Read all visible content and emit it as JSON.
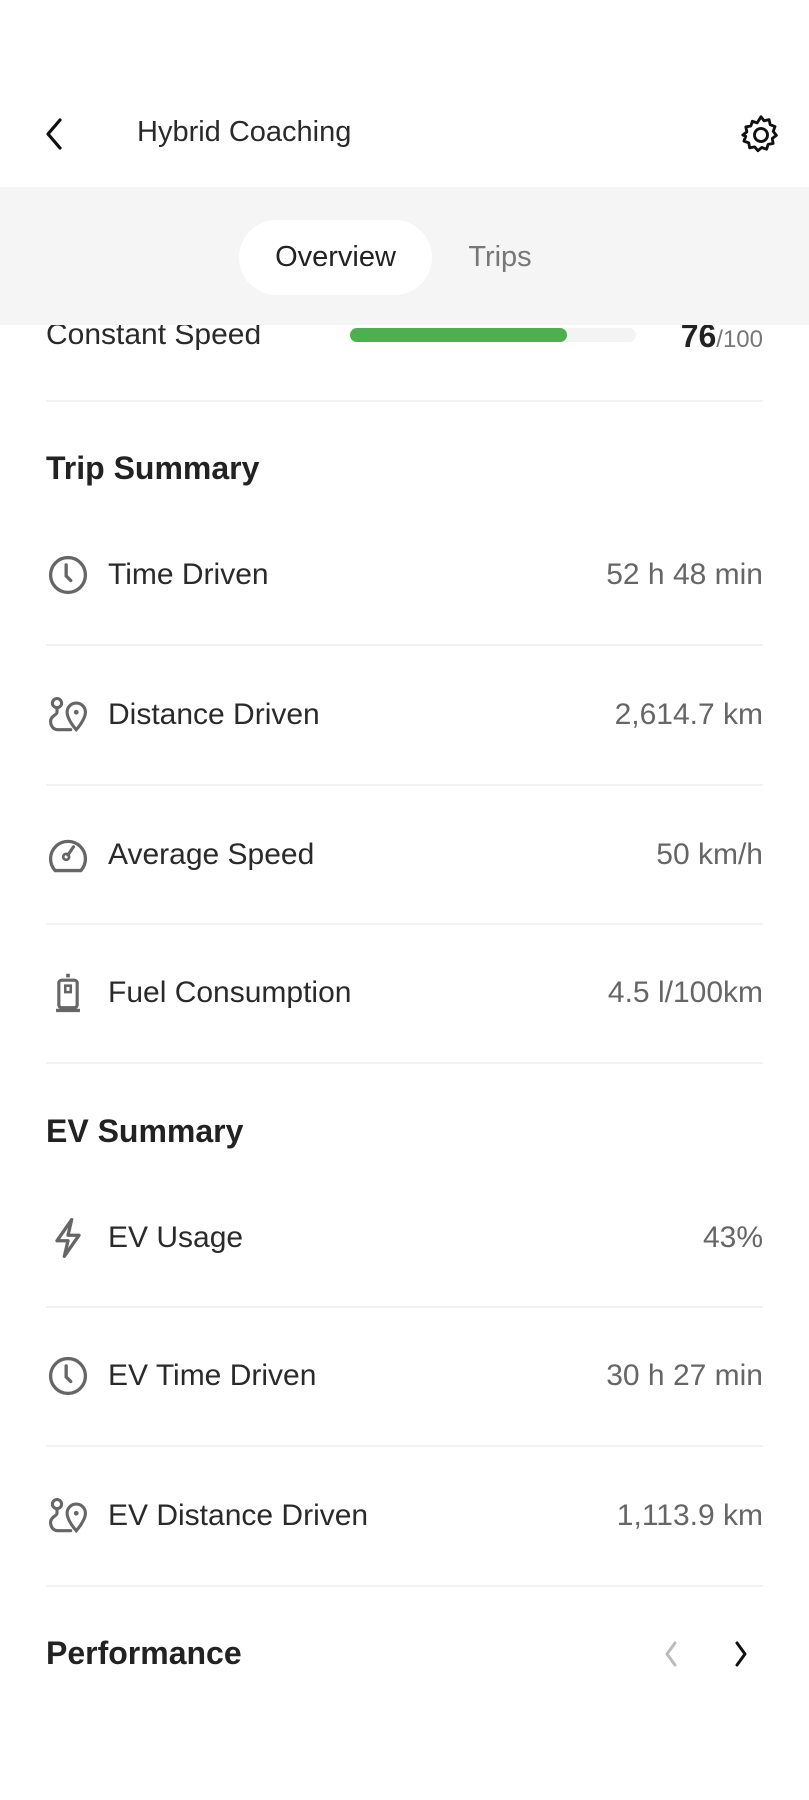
{
  "header": {
    "title": "Hybrid Coaching",
    "back_icon": "chevron-left-icon",
    "settings_icon": "gear-icon"
  },
  "tabs": [
    {
      "label": "Overview",
      "active": true
    },
    {
      "label": "Trips",
      "active": false
    }
  ],
  "constant_speed": {
    "label": "Constant Speed",
    "score": "76",
    "max": "/100",
    "progress_percent": 76,
    "color": "#4caf50"
  },
  "trip_summary": {
    "title": "Trip Summary",
    "items": [
      {
        "icon": "clock-icon",
        "label": "Time Driven",
        "value": "52 h 48 min"
      },
      {
        "icon": "route-pin-icon",
        "label": "Distance Driven",
        "value": "2,614.7 km"
      },
      {
        "icon": "speedometer-icon",
        "label": "Average Speed",
        "value": "50 km/h"
      },
      {
        "icon": "fuel-pump-icon",
        "label": "Fuel Consumption",
        "value": "4.5 l/100km"
      }
    ]
  },
  "ev_summary": {
    "title": "EV Summary",
    "items": [
      {
        "icon": "lightning-icon",
        "label": "EV Usage",
        "value": "43%"
      },
      {
        "icon": "clock-icon",
        "label": "EV Time Driven",
        "value": "30 h 27 min"
      },
      {
        "icon": "route-pin-icon",
        "label": "EV Distance Driven",
        "value": "1,113.9 km"
      }
    ]
  },
  "performance": {
    "title": "Performance",
    "prev_icon": "chevron-left-icon",
    "next_icon": "chevron-right-icon"
  }
}
